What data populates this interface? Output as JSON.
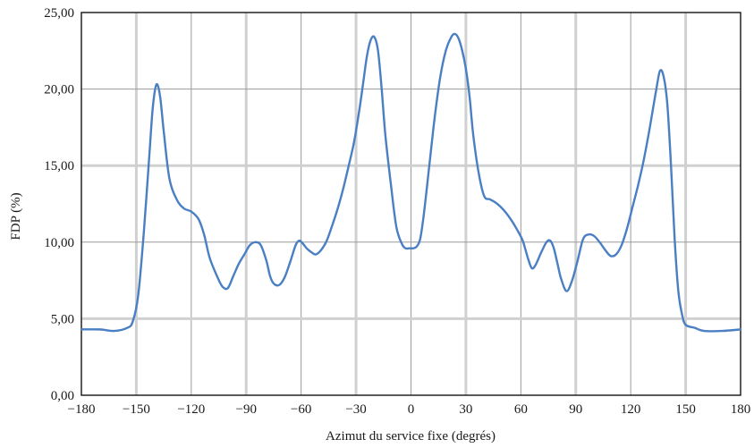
{
  "chart_data": {
    "type": "line",
    "title": "",
    "xlabel": "Azimut du service fixe (degrés)",
    "ylabel": "FDP (%)",
    "xlim": [
      -180,
      180
    ],
    "ylim": [
      0,
      25
    ],
    "grid": true,
    "x_ticks": [
      -180,
      -150,
      -120,
      -90,
      -60,
      -30,
      0,
      30,
      60,
      90,
      120,
      150,
      180
    ],
    "x_tick_labels": [
      "−180",
      "−150",
      "−120",
      "−90",
      "−60",
      "−30",
      "0",
      "30",
      "60",
      "90",
      "120",
      "150",
      "180"
    ],
    "y_ticks": [
      0,
      5,
      10,
      15,
      20,
      25
    ],
    "y_tick_labels": [
      "0,00",
      "5,00",
      "10,00",
      "15,00",
      "20,00",
      "25,00"
    ],
    "line_color": "#4a7fc4",
    "series": [
      {
        "name": "",
        "x": [
          -180,
          -170,
          -162,
          -155,
          -152,
          -149,
          -146,
          -143,
          -141,
          -139,
          -137,
          -135,
          -132,
          -128,
          -124,
          -120,
          -116,
          -113,
          -110,
          -106,
          -103,
          -100,
          -97,
          -94,
          -91,
          -88,
          -85,
          -82,
          -79,
          -77,
          -75,
          -72,
          -69,
          -66,
          -63,
          -61,
          -59,
          -57,
          -55,
          -52,
          -49,
          -46,
          -43,
          -40,
          -37,
          -34,
          -31,
          -28,
          -26,
          -24,
          -22,
          -20,
          -18,
          -16,
          -14,
          -11,
          -8,
          -5,
          -3,
          -1,
          1,
          3,
          5,
          7,
          10,
          13,
          16,
          19,
          22,
          24,
          26,
          28,
          30,
          32,
          34,
          37,
          40,
          43,
          46,
          49,
          52,
          55,
          58,
          61,
          64,
          66,
          68,
          71,
          74,
          76,
          78,
          80,
          82,
          85,
          88,
          91,
          94,
          97,
          100,
          103,
          106,
          109,
          112,
          115,
          118,
          121,
          124,
          127,
          130,
          132,
          134,
          136,
          138,
          140,
          142,
          144,
          146,
          148,
          150,
          155,
          160,
          170,
          180
        ],
        "y": [
          4.3,
          4.3,
          4.2,
          4.4,
          4.8,
          6.5,
          10.5,
          15.5,
          18.8,
          20.3,
          19.5,
          17.2,
          14.2,
          12.8,
          12.2,
          12.0,
          11.5,
          10.5,
          9.0,
          7.8,
          7.1,
          7.0,
          7.8,
          8.6,
          9.2,
          9.8,
          10.0,
          9.8,
          8.8,
          7.8,
          7.3,
          7.2,
          7.7,
          8.7,
          9.8,
          10.1,
          9.9,
          9.6,
          9.4,
          9.2,
          9.5,
          10.1,
          11.1,
          12.2,
          13.5,
          15.0,
          16.6,
          18.8,
          20.5,
          22.2,
          23.2,
          23.4,
          22.5,
          20.0,
          17.0,
          13.8,
          11.0,
          9.9,
          9.6,
          9.6,
          9.6,
          9.7,
          10.2,
          11.8,
          15.0,
          18.2,
          20.8,
          22.5,
          23.4,
          23.6,
          23.3,
          22.5,
          21.3,
          19.5,
          17.0,
          14.5,
          13.0,
          12.8,
          12.6,
          12.3,
          11.9,
          11.4,
          10.8,
          10.1,
          8.9,
          8.3,
          8.5,
          9.3,
          10.0,
          10.1,
          9.6,
          8.6,
          7.6,
          6.8,
          7.5,
          8.8,
          10.2,
          10.5,
          10.4,
          10.0,
          9.5,
          9.1,
          9.2,
          9.8,
          10.9,
          12.3,
          13.7,
          15.3,
          17.2,
          18.6,
          20.0,
          21.2,
          20.8,
          19.0,
          15.0,
          10.2,
          6.8,
          5.3,
          4.6,
          4.4,
          4.2,
          4.2,
          4.3
        ]
      }
    ]
  }
}
